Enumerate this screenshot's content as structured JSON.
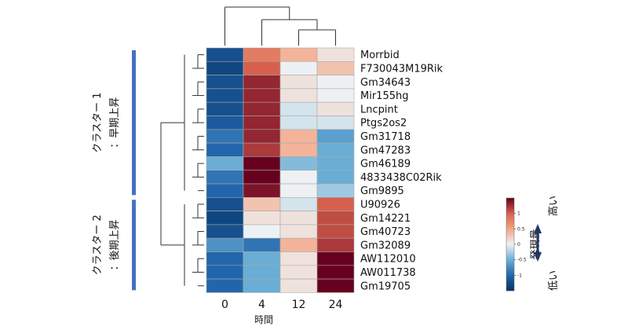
{
  "chart_data": {
    "type": "heatmap",
    "xlabel": "時間",
    "x_ticks": [
      "0",
      "4",
      "12",
      "24"
    ],
    "genes": [
      "Morrbid",
      "F730043M19Rik",
      "Gm34643",
      "Mir155hg",
      "Lncpint",
      "Ptgs2os2",
      "Gm31718",
      "Gm47283",
      "Gm46189",
      "4833438C02Rik",
      "Gm9895",
      "U90926",
      "Gm14221",
      "Gm40723",
      "Gm32089",
      "AW112010",
      "AW011738",
      "Gm19705"
    ],
    "values": [
      [
        -1.2,
        0.8,
        0.4,
        0.1
      ],
      [
        -1.3,
        1.0,
        0.0,
        0.3
      ],
      [
        -1.2,
        1.3,
        0.1,
        0.0
      ],
      [
        -1.2,
        1.3,
        0.1,
        0.0
      ],
      [
        -1.2,
        1.3,
        -0.1,
        0.1
      ],
      [
        -1.1,
        1.3,
        -0.1,
        -0.1
      ],
      [
        -0.9,
        1.3,
        0.4,
        -0.6
      ],
      [
        -1.0,
        1.2,
        0.4,
        -0.5
      ],
      [
        -0.5,
        1.5,
        -0.4,
        -0.5
      ],
      [
        -0.9,
        1.5,
        0.0,
        -0.5
      ],
      [
        -1.0,
        1.4,
        0.0,
        -0.3
      ],
      [
        -1.2,
        0.3,
        -0.1,
        1.0
      ],
      [
        -1.3,
        0.1,
        0.1,
        1.1
      ],
      [
        -1.2,
        0.0,
        0.1,
        1.1
      ],
      [
        -0.7,
        -0.9,
        0.4,
        1.2
      ],
      [
        -1.0,
        -0.5,
        0.1,
        1.5
      ],
      [
        -1.0,
        -0.5,
        0.1,
        1.5
      ],
      [
        -1.0,
        -0.5,
        0.1,
        1.5
      ]
    ],
    "colorbar": {
      "ticks": [
        "1",
        "0.5",
        "0",
        "-0.5",
        "-1"
      ],
      "tick_values": [
        1,
        0.5,
        0,
        -0.5,
        -1
      ],
      "range": [
        -1.5,
        1.5
      ],
      "label": "発現量",
      "high_label": "高い",
      "low_label": "低い"
    },
    "colormap": {
      "stops": [
        [
          -1.5,
          "#053061"
        ],
        [
          -1.0,
          "#2166ac"
        ],
        [
          -0.5,
          "#6aaed6"
        ],
        [
          0.0,
          "#eef1f3"
        ],
        [
          0.5,
          "#f4a582"
        ],
        [
          1.0,
          "#d6604d"
        ],
        [
          1.5,
          "#67001f"
        ]
      ]
    },
    "clusters": [
      {
        "line1": "クラスター 1",
        "line2": "：早期上昇",
        "rows": [
          0,
          10
        ]
      },
      {
        "line1": "クラスター 2",
        "line2": "：後期上昇",
        "rows": [
          11,
          17
        ]
      }
    ],
    "cluster_bar_color": "#4472c4",
    "grid": false
  }
}
